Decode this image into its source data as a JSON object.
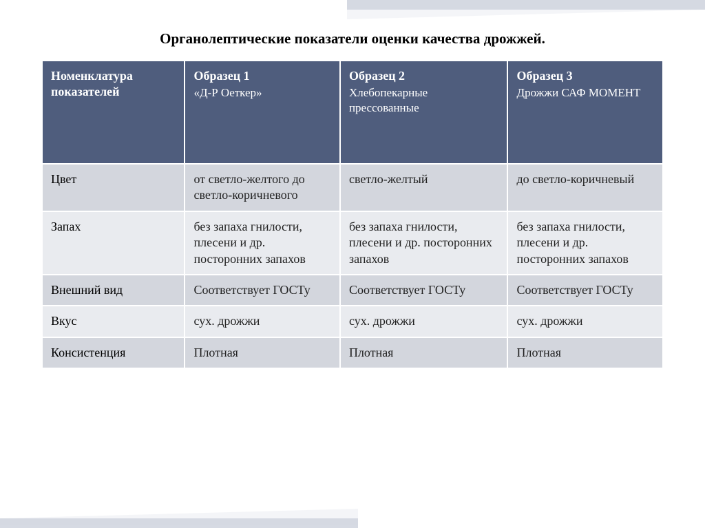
{
  "title": "Органолептические показатели оценки качества дрожжей.",
  "table": {
    "header_bg": "#4f5d7d",
    "header_fg": "#ffffff",
    "row_odd_bg": "#d3d6dd",
    "row_even_bg": "#e9ebef",
    "border_color": "#ffffff",
    "columns": [
      {
        "title": "Номенклатура показателей",
        "sub": ""
      },
      {
        "title": "Образец 1",
        "sub": "«Д-Р Оеткер»"
      },
      {
        "title": "Образец 2",
        "sub": "Хлебопекарные прессованные"
      },
      {
        "title": "Образец 3",
        "sub": "Дрожжи САФ МОМЕНТ"
      }
    ],
    "rows": [
      {
        "label": "Цвет",
        "cells": [
          "от светло-желтого до светло-коричневого",
          "светло-желтый",
          "до светло-коричневый"
        ]
      },
      {
        "label": "Запах",
        "cells": [
          "без запаха гнилости, плесени и др. посторонних запахов",
          "без запаха гнилости, плесени и др. посторонних запахов",
          "без запаха гнилости, плесени и др. посторонних запахов"
        ]
      },
      {
        "label": "Внешний вид",
        "cells": [
          "Соответствует ГОСТу",
          "Соответствует ГОСТу",
          "Соответствует ГОСТу"
        ]
      },
      {
        "label": "Вкус",
        "cells": [
          "сух. дрожжи",
          "сух. дрожжи",
          "сух. дрожжи"
        ]
      },
      {
        "label": "Консистенция",
        "cells": [
          "Плотная",
          "Плотная",
          "Плотная"
        ]
      }
    ]
  }
}
